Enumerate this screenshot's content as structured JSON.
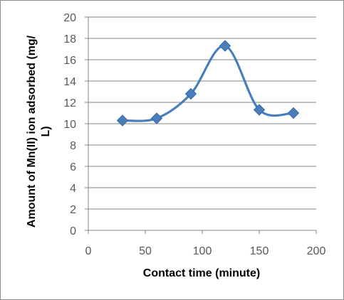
{
  "chart_data": {
    "type": "line",
    "title": "",
    "xlabel": "Contact time (minute)",
    "ylabel_lines": [
      "Amount of Mn(II) ion adsorbed (mg/",
      "L)"
    ],
    "xlim": [
      0,
      200
    ],
    "ylim": [
      0,
      20
    ],
    "x_ticks": [
      "0",
      "50",
      "100",
      "150",
      "200"
    ],
    "y_ticks": [
      "0",
      "2",
      "4",
      "6",
      "8",
      "10",
      "12",
      "14",
      "16",
      "18",
      "20"
    ],
    "grid": "horizontal",
    "legend": "none",
    "smoothed": true,
    "marker": "diamond",
    "series_color": "#4a7ebb",
    "series": [
      {
        "x": [
          30,
          60,
          90,
          120,
          150,
          180
        ],
        "y": [
          10.3,
          10.5,
          12.8,
          17.3,
          11.3,
          11.0
        ]
      }
    ]
  }
}
